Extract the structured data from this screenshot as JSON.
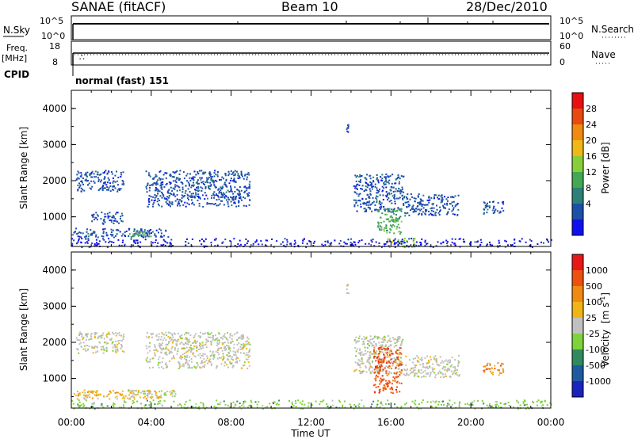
{
  "header": {
    "station": "SANAE (fitACF)",
    "beam": "Beam 10",
    "date": "28/Dec/2010"
  },
  "status_panels": {
    "nsky_label": "N.Sky",
    "nsky_ticks": [
      "10^5",
      "10^0"
    ],
    "nsearch_label": "N.Search",
    "nsearch_ticks": [
      "10^5",
      "10^0"
    ],
    "freq_label_top": "Freq.",
    "freq_label_bottom": "[MHz]",
    "freq_ticks": [
      "18",
      "8"
    ],
    "nave_label": "Nave",
    "nave_ticks": [
      "60",
      "0"
    ],
    "cpid_label": "CPID",
    "cpid_value": "normal (fast) 151"
  },
  "chart_data": [
    {
      "type": "heatmap",
      "panel": "power",
      "ylabel": "Slant Range [km]",
      "ylim": [
        180,
        4500
      ],
      "yticks": [
        "4000",
        "3000",
        "2000",
        "1000"
      ],
      "xlim_hours": [
        0,
        24
      ],
      "colorbar_label": "Power [dB]",
      "colorbar_ticks": [
        "28",
        "24",
        "20",
        "16",
        "12",
        "8",
        "4"
      ],
      "colors": [
        "#1010ee",
        "#1c4fa8",
        "#2c8077",
        "#42a952",
        "#86cf3a",
        "#f0b816",
        "#f08a10",
        "#e84a10",
        "#e81010"
      ],
      "regions": [
        {
          "t": [
            0.2,
            2.6
          ],
          "r": [
            1720,
            2300
          ],
          "level": 1
        },
        {
          "t": [
            1.0,
            2.6
          ],
          "r": [
            820,
            1150
          ],
          "level": 1
        },
        {
          "t": [
            0.1,
            4.9
          ],
          "r": [
            450,
            700
          ],
          "level": 1
        },
        {
          "t": [
            2.8,
            4.2
          ],
          "r": [
            480,
            620
          ],
          "level": 3
        },
        {
          "t": [
            3.7,
            8.9
          ],
          "r": [
            1300,
            2300
          ],
          "level": 1
        },
        {
          "t": [
            14.1,
            16.6
          ],
          "r": [
            1150,
            2200
          ],
          "level": 1
        },
        {
          "t": [
            15.3,
            16.5
          ],
          "r": [
            550,
            1250
          ],
          "level": 3
        },
        {
          "t": [
            16.6,
            19.4
          ],
          "r": [
            1050,
            1650
          ],
          "level": 1
        },
        {
          "t": [
            20.6,
            21.6
          ],
          "r": [
            1100,
            1450
          ],
          "level": 1
        },
        {
          "t": [
            13.75,
            13.85
          ],
          "r": [
            3350,
            3650
          ],
          "level": 1
        },
        {
          "t": [
            15.7,
            17.2
          ],
          "r": [
            180,
            420
          ],
          "level": 4
        },
        {
          "t": [
            0.0,
            24.0
          ],
          "r": [
            180,
            420
          ],
          "level": 0
        }
      ]
    },
    {
      "type": "heatmap",
      "panel": "velocity",
      "ylabel": "Slant Range [km]",
      "ylim": [
        180,
        4500
      ],
      "yticks": [
        "4000",
        "3000",
        "2000",
        "1000"
      ],
      "xlim_hours": [
        0,
        24
      ],
      "xticks": [
        "00:00",
        "04:00",
        "08:00",
        "12:00",
        "16:00",
        "20:00",
        "00:00"
      ],
      "xlabel": "Time UT",
      "colorbar_label_main": "Velocity",
      "colorbar_label_units": "[m s",
      "colorbar_label_exp": "-1",
      "colorbar_label_close": "]",
      "colorbar_ticks": [
        "1000",
        "500",
        "100",
        "25",
        "-25",
        "-100",
        "-500",
        "-1000"
      ],
      "colors": [
        "#1a22c0",
        "#1d5aa0",
        "#2f8a60",
        "#7ed23a",
        "#c0c0c0",
        "#f0b416",
        "#f08a12",
        "#ee5010",
        "#e81818"
      ],
      "regions": [
        {
          "t": [
            0.2,
            2.6
          ],
          "r": [
            1720,
            2300
          ],
          "level": 4
        },
        {
          "t": [
            3.7,
            8.9
          ],
          "r": [
            1300,
            2300
          ],
          "level": 4
        },
        {
          "t": [
            0.1,
            4.5
          ],
          "r": [
            450,
            700
          ],
          "level": 5
        },
        {
          "t": [
            2.8,
            5.2
          ],
          "r": [
            480,
            700
          ],
          "level": 4
        },
        {
          "t": [
            14.1,
            16.6
          ],
          "r": [
            1150,
            2200
          ],
          "level": 4
        },
        {
          "t": [
            15.1,
            16.5
          ],
          "r": [
            600,
            1900
          ],
          "level": 7
        },
        {
          "t": [
            16.6,
            19.4
          ],
          "r": [
            1050,
            1650
          ],
          "level": 4
        },
        {
          "t": [
            20.6,
            21.6
          ],
          "r": [
            1100,
            1450
          ],
          "level": 6
        },
        {
          "t": [
            13.75,
            13.85
          ],
          "r": [
            3350,
            3650
          ],
          "level": 4
        },
        {
          "t": [
            0.0,
            24.0
          ],
          "r": [
            180,
            420
          ],
          "level": 3
        }
      ]
    }
  ]
}
